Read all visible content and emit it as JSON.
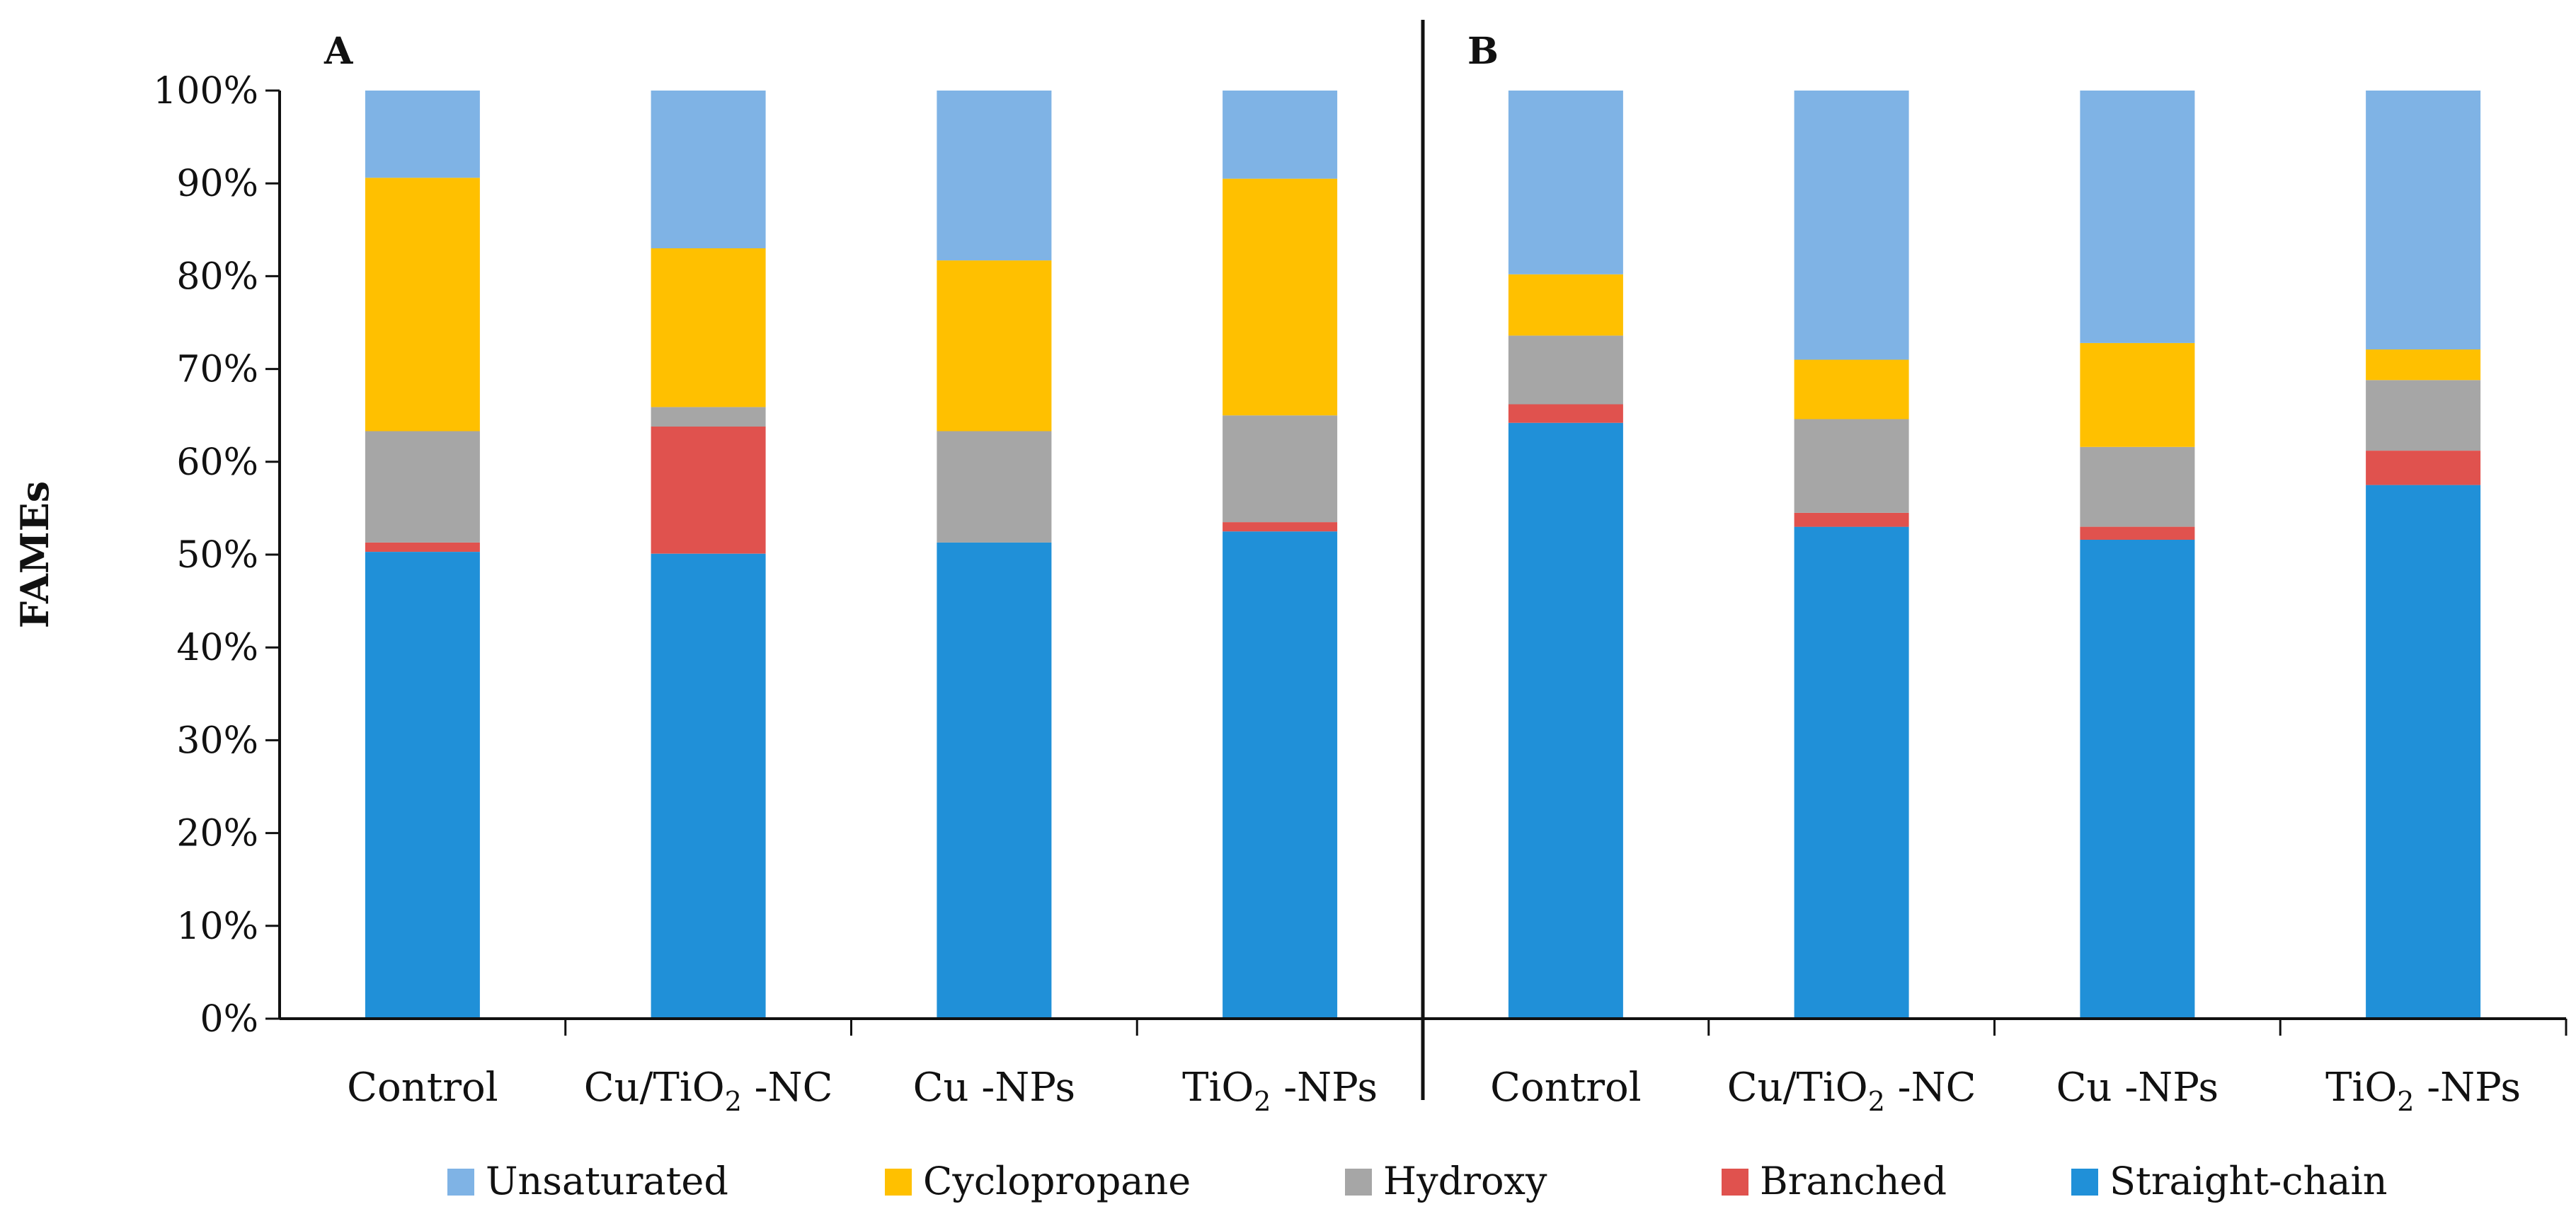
{
  "chart_data": {
    "type": "bar",
    "stacked": true,
    "percent": true,
    "ylabel": "FAMEs",
    "ylim": [
      0,
      100
    ],
    "yticks": [
      "0%",
      "10%",
      "20%",
      "30%",
      "40%",
      "50%",
      "60%",
      "70%",
      "80%",
      "90%",
      "100%"
    ],
    "grid": false,
    "legend_position": "bottom",
    "series": [
      {
        "name": "Straight-chain",
        "color": "#2090D8"
      },
      {
        "name": "Branched",
        "color": "#E0524E"
      },
      {
        "name": "Hydroxy",
        "color": "#A6A6A6"
      },
      {
        "name": "Cyclopropane",
        "color": "#FFC000"
      },
      {
        "name": "Unsaturated",
        "color": "#7FB3E5"
      }
    ],
    "legend_order": [
      "Unsaturated",
      "Cyclopropane",
      "Hydroxy",
      "Branched",
      "Straight-chain"
    ],
    "panels": [
      {
        "label": "A",
        "categories": [
          {
            "name": "Control",
            "sub": "",
            "suffix": ""
          },
          {
            "name": "Cu/TiO",
            "sub": "2",
            "suffix": " -NC"
          },
          {
            "name": "Cu -NPs",
            "sub": "",
            "suffix": ""
          },
          {
            "name": "TiO",
            "sub": "2",
            "suffix": " -NPs"
          }
        ],
        "values": [
          [
            50.3,
            1.0,
            12.0,
            27.3,
            9.4
          ],
          [
            50.1,
            13.7,
            2.1,
            17.1,
            17.0
          ],
          [
            51.3,
            0.0,
            12.0,
            18.4,
            18.3
          ],
          [
            52.5,
            1.0,
            11.5,
            25.5,
            9.5
          ]
        ]
      },
      {
        "label": "B",
        "categories": [
          {
            "name": "Control",
            "sub": "",
            "suffix": ""
          },
          {
            "name": "Cu/TiO",
            "sub": "2",
            "suffix": " -NC"
          },
          {
            "name": "Cu -NPs",
            "sub": "",
            "suffix": ""
          },
          {
            "name": "TiO",
            "sub": "2",
            "suffix": " -NPs"
          }
        ],
        "values": [
          [
            64.2,
            2.0,
            7.4,
            6.6,
            19.8
          ],
          [
            53.0,
            1.5,
            10.1,
            6.4,
            29.0
          ],
          [
            51.6,
            1.4,
            8.6,
            11.2,
            27.2
          ],
          [
            57.5,
            3.7,
            7.6,
            3.3,
            27.9
          ]
        ]
      }
    ]
  }
}
